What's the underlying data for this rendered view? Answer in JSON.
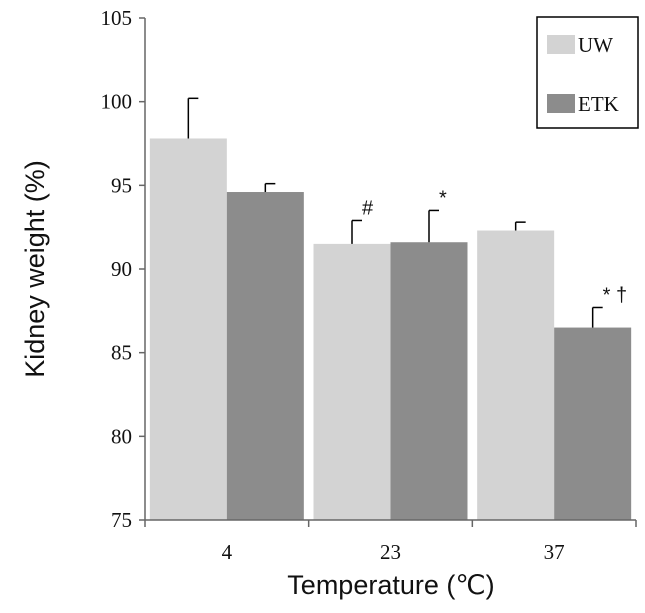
{
  "chart_data": {
    "type": "bar",
    "title": "",
    "xlabel": "Temperature (℃)",
    "ylabel": "Kidney weight (%)",
    "categories": [
      "4",
      "23",
      "37"
    ],
    "ylim": [
      75,
      105
    ],
    "yticks": [
      75,
      80,
      85,
      90,
      95,
      100,
      105
    ],
    "grid": false,
    "legend_position": "top-right",
    "series": [
      {
        "name": "UW",
        "color": "#d3d3d3",
        "values": [
          97.8,
          91.5,
          92.3
        ],
        "errors": [
          2.4,
          1.4,
          0.5
        ],
        "annotations": [
          "",
          "#",
          ""
        ]
      },
      {
        "name": "ETK",
        "color": "#8c8c8c",
        "values": [
          94.6,
          91.6,
          86.5
        ],
        "errors": [
          0.5,
          1.9,
          1.2
        ],
        "annotations": [
          "",
          "*",
          "* †"
        ]
      }
    ]
  }
}
